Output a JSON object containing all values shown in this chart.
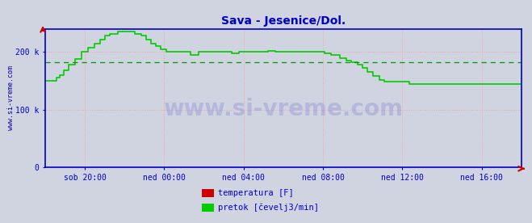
{
  "title": "Sava - Jesenice/Dol.",
  "title_color": "#0000cc",
  "bg_color": "#d0d4e0",
  "plot_bg_color": "#d0d4e0",
  "grid_color": "#ff9999",
  "axis_color": "#0000cc",
  "tick_label_color": "#0000cc",
  "ylabel_text": "www.si-vreme.com",
  "ylabel_color": "#0000aa",
  "yticks": [
    0,
    100,
    200
  ],
  "ytick_labels": [
    "0",
    "100 k",
    "200 k"
  ],
  "ylim": [
    0,
    240
  ],
  "xtick_labels": [
    "sob 20:00",
    "ned 00:00",
    "ned 04:00",
    "ned 08:00",
    "ned 12:00",
    "ned 16:00"
  ],
  "dashed_line_y": 183,
  "dashed_line_color": "#009900",
  "line_color": "#00cc00",
  "line_width": 1.2,
  "watermark_text": "www.si-vreme.com",
  "watermark_color": "#0000cc",
  "watermark_alpha": 0.13,
  "legend_items": [
    {
      "label": "temperatura [F]",
      "color": "#cc0000"
    },
    {
      "label": "pretok [čevelj3/min]",
      "color": "#00cc00"
    }
  ],
  "flow_data": [
    150,
    150,
    150,
    150,
    150,
    150,
    150,
    155,
    155,
    160,
    160,
    168,
    168,
    168,
    178,
    178,
    178,
    178,
    188,
    188,
    188,
    188,
    200,
    200,
    200,
    200,
    208,
    208,
    208,
    208,
    215,
    215,
    215,
    222,
    222,
    222,
    228,
    228,
    228,
    232,
    232,
    232,
    232,
    232,
    235,
    235,
    235,
    235,
    235,
    235,
    235,
    235,
    235,
    235,
    232,
    232,
    232,
    232,
    228,
    228,
    228,
    222,
    222,
    222,
    215,
    215,
    215,
    210,
    210,
    210,
    205,
    205,
    205,
    200,
    200,
    200,
    200,
    200,
    200,
    200,
    200,
    200,
    200,
    200,
    200,
    200,
    200,
    200,
    195,
    195,
    195,
    195,
    195,
    200,
    200,
    200,
    200,
    200,
    200,
    200,
    200,
    200,
    200,
    200,
    200,
    200,
    200,
    200,
    200,
    200,
    200,
    200,
    200,
    198,
    198,
    198,
    198,
    200,
    200,
    200,
    200,
    200,
    200,
    200,
    200,
    200,
    200,
    200,
    200,
    200,
    200,
    200,
    200,
    200,
    200,
    202,
    202,
    202,
    202,
    200,
    200,
    200,
    200,
    200,
    200,
    200,
    200,
    200,
    200,
    200,
    200,
    200,
    200,
    200,
    200,
    200,
    200,
    200,
    200,
    200,
    200,
    200,
    200,
    200,
    200,
    200,
    200,
    200,
    200,
    198,
    198,
    198,
    198,
    195,
    195,
    195,
    195,
    195,
    190,
    190,
    190,
    190,
    185,
    185,
    185,
    182,
    182,
    182,
    182,
    178,
    178,
    178,
    172,
    172,
    172,
    165,
    165,
    165,
    158,
    158,
    158,
    158,
    152,
    152,
    152,
    148,
    148,
    148,
    148,
    148,
    148,
    148,
    148,
    148,
    148,
    148,
    148,
    148,
    148,
    148,
    145,
    145,
    145,
    145,
    145,
    145,
    145,
    145,
    145,
    145,
    145,
    145,
    145,
    145,
    145,
    145,
    145,
    145,
    145,
    145,
    145,
    145,
    145,
    145,
    145,
    145,
    145,
    145,
    145,
    145,
    145,
    145,
    145,
    145,
    145,
    145,
    145,
    145,
    145,
    145,
    145,
    145,
    145,
    145,
    145,
    145,
    145,
    145,
    145,
    145,
    145,
    145,
    145,
    145,
    145,
    145,
    145,
    145,
    145,
    145,
    145,
    145,
    145,
    145,
    145,
    145,
    145,
    145,
    145
  ]
}
